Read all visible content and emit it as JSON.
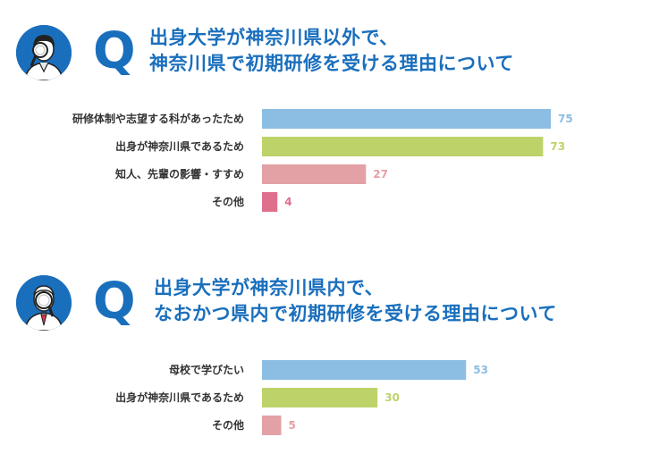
{
  "colors": {
    "title": "#1a6fbd",
    "blue": "#8cbde3",
    "green": "#bdd36a",
    "pink": "#e3a1a6",
    "magenta": "#de6f8d"
  },
  "q1": {
    "q_letter": "Q",
    "title_line1": "出身大学が神奈川県以外で、",
    "title_line2": "神奈川県で初期研修を受ける理由について"
  },
  "q2": {
    "q_letter": "Q",
    "title_line1": "出身大学が神奈川県内で、",
    "title_line2": "なおかつ県内で初期研修を受ける理由について"
  },
  "chart_data": [
    {
      "type": "bar",
      "orientation": "horizontal",
      "categories": [
        "研修体制や志望する科があったため",
        "出身が神奈川県であるため",
        "知人、先輩の影響・すすめ",
        "その他"
      ],
      "values": [
        75,
        73,
        27,
        4
      ],
      "colors": [
        "#8cbde3",
        "#bdd36a",
        "#e3a1a6",
        "#de6f8d"
      ],
      "xlim": [
        0,
        75
      ],
      "grid": false
    },
    {
      "type": "bar",
      "orientation": "horizontal",
      "categories": [
        "母校で学びたい",
        "出身が神奈川県であるため",
        "その他"
      ],
      "values": [
        53,
        30,
        5
      ],
      "colors": [
        "#8cbde3",
        "#bdd36a",
        "#e3a1a6"
      ],
      "xlim": [
        0,
        75
      ],
      "grid": false
    }
  ]
}
